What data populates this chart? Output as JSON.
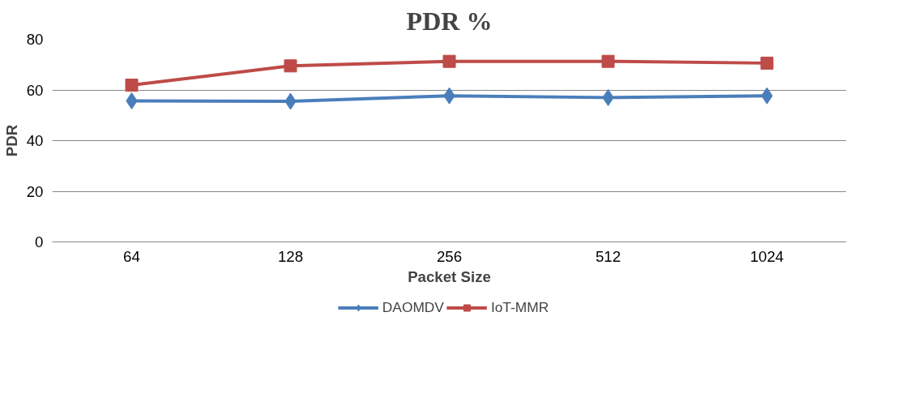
{
  "chart_data": {
    "type": "line",
    "title": "PDR %",
    "xlabel": "Packet Size",
    "ylabel": "PDR",
    "categories": [
      "64",
      "128",
      "256",
      "512",
      "1024"
    ],
    "series": [
      {
        "name": "DAOMDV",
        "color": "#4a7ebb",
        "values": [
          55.7,
          55.5,
          57.7,
          57,
          57.7
        ],
        "marker": "diamond"
      },
      {
        "name": "IoT-MMR",
        "color": "#be4b48",
        "values": [
          61.9,
          69.5,
          71.3,
          71.3,
          70.6
        ],
        "marker": "square"
      }
    ],
    "ylim": [
      0,
      80
    ],
    "yticks": [
      0,
      20,
      40,
      60,
      80
    ],
    "grid": "y",
    "legend": "bottom",
    "line_style": "solid"
  }
}
